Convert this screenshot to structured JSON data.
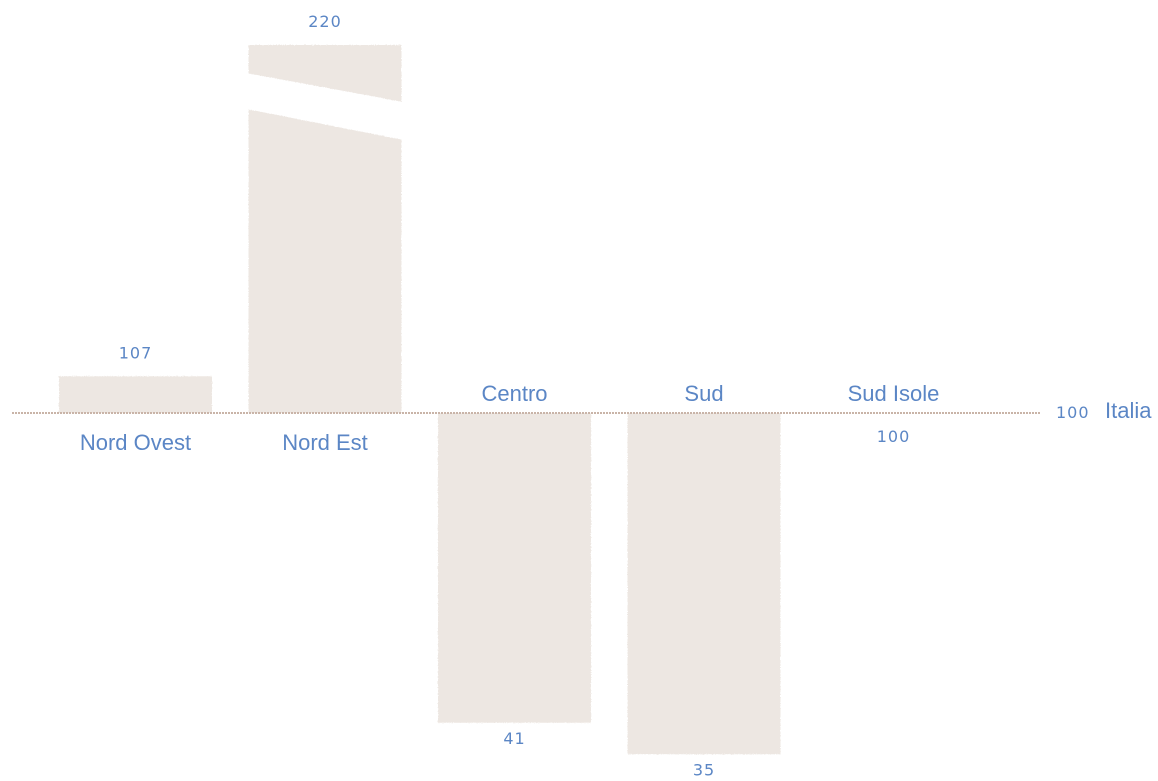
{
  "chart_data": {
    "type": "bar",
    "baseline": 100,
    "baseline_label": "Italia",
    "baseline_value_label": "100",
    "categories": [
      "Nord Ovest",
      "Nord Est",
      "Centro",
      "Sud",
      "Sud Isole"
    ],
    "values": [
      107,
      220,
      41,
      35,
      100
    ],
    "value_labels": [
      "107",
      "220",
      "41",
      "35",
      "100"
    ],
    "axis_break": {
      "category": "Nord Est"
    },
    "colors": {
      "bar": "#ede7e2",
      "label": "#5b86c5",
      "baseline": "#c9b4a8"
    }
  }
}
